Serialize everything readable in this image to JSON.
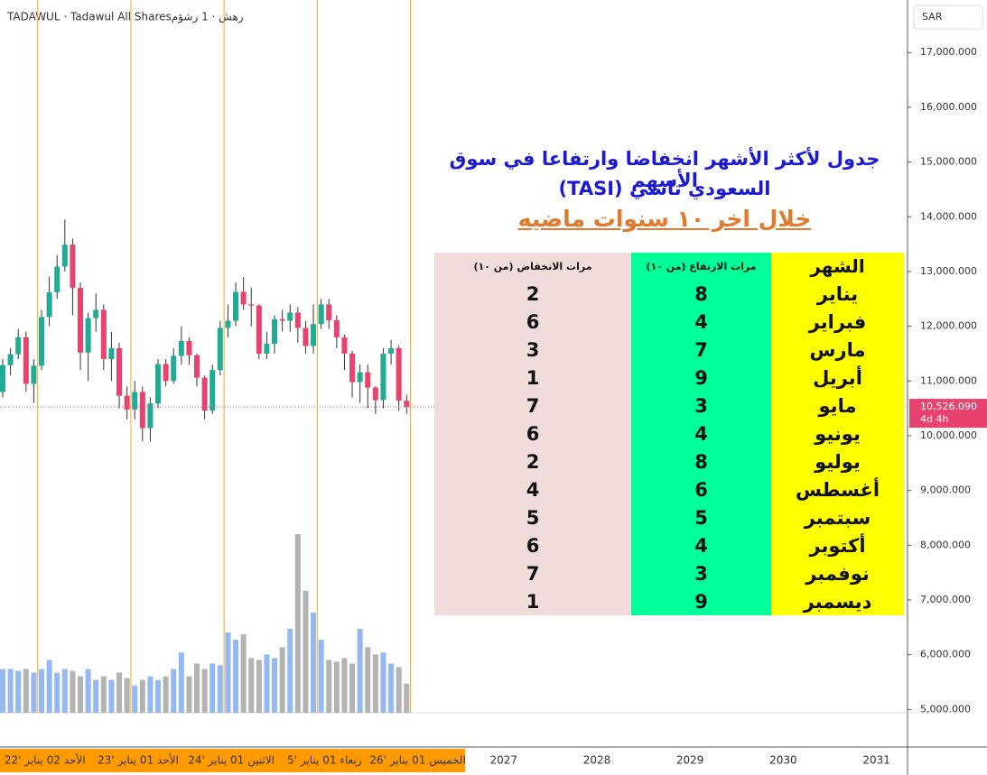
{
  "header": {
    "symbol": "TADAWUL · Tadawul All Sharesرهش · 1 رشؤم",
    "currency": "SAR"
  },
  "chart_data": {
    "type": "candlestick",
    "categories": [
      null,
      null,
      null,
      null,
      null,
      null,
      null,
      null,
      null,
      null,
      null,
      null,
      null,
      null,
      null,
      null,
      null,
      null,
      null,
      null,
      null,
      null,
      null,
      null,
      null,
      null,
      null,
      null,
      null,
      null,
      null,
      null,
      null,
      null,
      null,
      null,
      null,
      null,
      null,
      null,
      null,
      null,
      null,
      null,
      null,
      null,
      null,
      null,
      null,
      null,
      null,
      null,
      null
    ],
    "open": [
      10800,
      11290,
      11490,
      11800,
      10950,
      11280,
      12170,
      12620,
      13090,
      13490,
      12700,
      11520,
      12150,
      12300,
      11400,
      11600,
      10730,
      10480,
      10800,
      10140,
      10590,
      11310,
      11000,
      11460,
      11730,
      11470,
      11060,
      10460,
      11200,
      11970,
      12100,
      12630,
      12400,
      12380,
      11500,
      11680,
      12130,
      12100,
      12250,
      11970,
      11640,
      12040,
      12400,
      12110,
      11800,
      11500,
      10980,
      11160,
      10880,
      10650,
      11500,
      11600,
      10640
    ],
    "high": [
      11400,
      11600,
      11950,
      11900,
      11400,
      12300,
      12900,
      13300,
      13950,
      13600,
      12800,
      12250,
      12600,
      12400,
      11900,
      11700,
      10900,
      11000,
      10900,
      10700,
      11400,
      11400,
      11600,
      12000,
      11800,
      11500,
      11100,
      11300,
      12100,
      12400,
      12800,
      12900,
      12700,
      12400,
      11900,
      12200,
      12300,
      12400,
      12350,
      12100,
      12400,
      12500,
      12500,
      12200,
      11850,
      11550,
      11300,
      11300,
      10900,
      11600,
      11750,
      11650,
      10750
    ],
    "low": [
      10700,
      11100,
      11400,
      10800,
      10600,
      11200,
      12000,
      12500,
      13000,
      12200,
      11200,
      11000,
      11900,
      11200,
      11000,
      10500,
      10300,
      10300,
      9900,
      9900,
      10500,
      10900,
      10950,
      11300,
      11300,
      10900,
      10300,
      10400,
      11100,
      11800,
      12000,
      12300,
      12000,
      11400,
      11400,
      11500,
      11900,
      11900,
      11700,
      11500,
      11500,
      11950,
      11950,
      11600,
      11200,
      10700,
      10600,
      10500,
      10400,
      10500,
      11300,
      10450,
      10400
    ],
    "close": [
      11290,
      11490,
      11800,
      10950,
      11280,
      12170,
      12620,
      13090,
      13490,
      12700,
      11520,
      12150,
      12300,
      11400,
      11600,
      10730,
      10480,
      10800,
      10140,
      10590,
      11310,
      11000,
      11460,
      11730,
      11470,
      11060,
      10460,
      11200,
      11970,
      12100,
      12630,
      12400,
      12380,
      11500,
      11680,
      12130,
      12100,
      12250,
      11970,
      11640,
      12040,
      12400,
      12110,
      11800,
      11500,
      10980,
      11160,
      10880,
      10650,
      11500,
      11600,
      10640,
      10526
    ],
    "volume": [
      48,
      48,
      46,
      48,
      44,
      48,
      58,
      44,
      48,
      46,
      40,
      48,
      36,
      40,
      36,
      44,
      38,
      30,
      36,
      40,
      36,
      40,
      48,
      66,
      40,
      54,
      48,
      54,
      52,
      88,
      80,
      86,
      60,
      58,
      64,
      60,
      72,
      92,
      196,
      134,
      110,
      80,
      58,
      56,
      60,
      54,
      92,
      72,
      64,
      66,
      54,
      50,
      32
    ],
    "up_color": "#22ab94",
    "down_color": "#e8436e",
    "volume_up_color": "#93b8f2",
    "volume_down_color": "#b3b3b3",
    "session_line_color": "#f5a623",
    "last_price": {
      "value": 10526.09,
      "label": "10,526.090"
    },
    "countdown": "4d 4h",
    "ylim": [
      4940,
      17960
    ],
    "yticks": [
      {
        "value": 5000,
        "label": "5,000.000"
      },
      {
        "value": 6000,
        "label": "6,000.000"
      },
      {
        "value": 7000,
        "label": "7,000.000"
      },
      {
        "value": 8000,
        "label": "8,000.000"
      },
      {
        "value": 9000,
        "label": "9,000.000"
      },
      {
        "value": 10000,
        "label": "10,000.000"
      },
      {
        "value": 11000,
        "label": "11,000.000"
      },
      {
        "value": 12000,
        "label": "12,000.000"
      },
      {
        "value": 13000,
        "label": "13,000.000"
      },
      {
        "value": 14000,
        "label": "14,000.000"
      },
      {
        "value": 15000,
        "label": "15,000.000"
      },
      {
        "value": 16000,
        "label": "16,000.000"
      },
      {
        "value": 17000,
        "label": "17,000.000"
      }
    ],
    "xlim": [
      -0.35,
      116.5
    ],
    "xticks": [
      {
        "value": 5,
        "label": "الأحد 02 يناير '22"
      },
      {
        "value": 17,
        "label": "الأحد 01 يناير '23"
      },
      {
        "value": 29,
        "label": "الاثنين 01 يناير '24"
      },
      {
        "value": 41,
        "label": "ربعاء 01 يناير '5"
      },
      {
        "value": 53,
        "label": "الخميس 01 يناير '26"
      },
      {
        "value": 65,
        "label": "2027"
      },
      {
        "value": 77,
        "label": "2028"
      },
      {
        "value": 89,
        "label": "2029"
      },
      {
        "value": 101,
        "label": "2030"
      },
      {
        "value": 113,
        "label": "2031"
      }
    ]
  },
  "table": {
    "title": "جدول لأكثر الأشهر انخفاضا وارتفاعا في سوق الأسهم",
    "subtitle": "السعودي  تاسي (TASI)",
    "period": "خلال اخر ١٠ سنوات ماضيه",
    "columns": [
      "الشهر",
      "مرات الارتفاع (من ١٠)",
      "مرات الانخفاض (من ١٠)"
    ],
    "rows": [
      [
        "يناير",
        8,
        2
      ],
      [
        "فبراير",
        4,
        6
      ],
      [
        "مارس",
        7,
        3
      ],
      [
        "أبريل",
        9,
        1
      ],
      [
        "مايو",
        3,
        7
      ],
      [
        "يونيو",
        4,
        6
      ],
      [
        "يوليو",
        8,
        2
      ],
      [
        "أغسطس",
        6,
        4
      ],
      [
        "سبتمبر",
        5,
        5
      ],
      [
        "أكتوبر",
        4,
        6
      ],
      [
        "نوفمبر",
        3,
        7
      ],
      [
        "ديسمبر",
        9,
        1
      ]
    ]
  }
}
